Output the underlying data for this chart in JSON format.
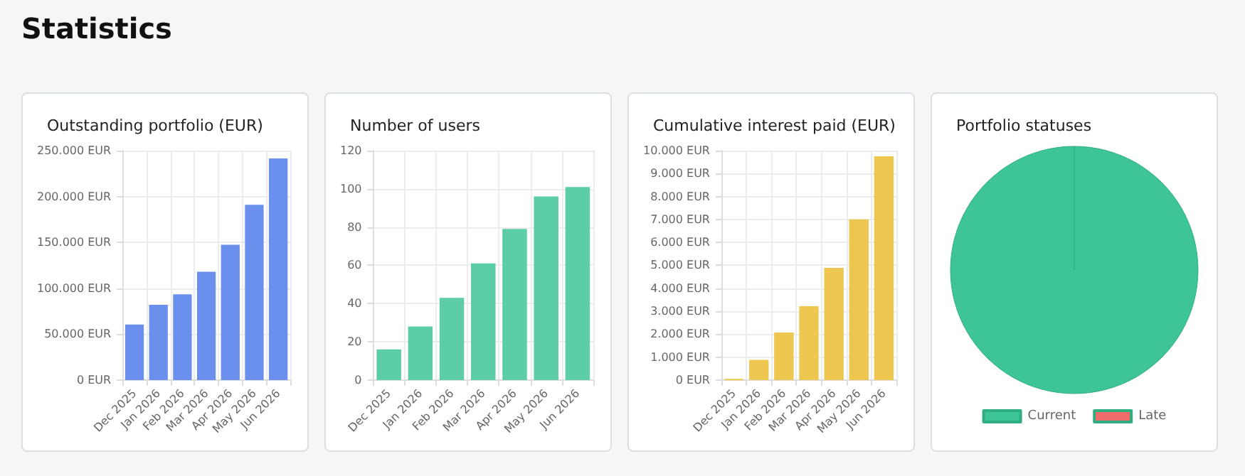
{
  "chart_data": [
    {
      "type": "other",
      "title": "Statistics"
    },
    {
      "type": "bar",
      "title": "Outstanding portfolio (EUR)",
      "categories": [
        "Dec 2025",
        "Jan 2026",
        "Feb 2026",
        "Mar 2026",
        "Apr 2026",
        "May 2026",
        "Jun 2026"
      ],
      "values": [
        60500,
        82000,
        93500,
        118000,
        147500,
        191000,
        241500
      ],
      "color": "#6a8fec",
      "ylim": [
        0,
        250000
      ],
      "yticks": [
        {
          "value": 0,
          "label": "0 EUR"
        },
        {
          "value": 50000,
          "label": "50.000 EUR"
        },
        {
          "value": 100000,
          "label": "100.000 EUR"
        },
        {
          "value": 150000,
          "label": "150.000 EUR"
        },
        {
          "value": 200000,
          "label": "200.000 EUR"
        },
        {
          "value": 250000,
          "label": "250.000 EUR"
        }
      ],
      "grid": true,
      "legend": false
    },
    {
      "type": "bar",
      "title": "Number of users",
      "categories": [
        "Dec 2025",
        "Jan 2026",
        "Feb 2026",
        "Mar 2026",
        "Apr 2026",
        "May 2026",
        "Jun 2026"
      ],
      "values": [
        16,
        28,
        43,
        61,
        79,
        96,
        101
      ],
      "color": "#5ccda4",
      "ylim": [
        0,
        120
      ],
      "yticks": [
        0,
        20,
        40,
        60,
        80,
        100,
        120
      ],
      "grid": true,
      "legend": false
    },
    {
      "type": "bar",
      "title": "Cumulative interest paid (EUR)",
      "categories": [
        "Dec 2025",
        "Jan 2026",
        "Feb 2026",
        "Mar 2026",
        "Apr 2026",
        "May 2026",
        "Jun 2026"
      ],
      "values": [
        40,
        880,
        2070,
        3220,
        4890,
        7000,
        9750
      ],
      "color": "#eec750",
      "ylim": [
        0,
        10000
      ],
      "yticks": [
        {
          "value": 0,
          "label": "0 EUR"
        },
        {
          "value": 1000,
          "label": "1.000 EUR"
        },
        {
          "value": 2000,
          "label": "2.000 EUR"
        },
        {
          "value": 3000,
          "label": "3.000 EUR"
        },
        {
          "value": 4000,
          "label": "4.000 EUR"
        },
        {
          "value": 5000,
          "label": "5.000 EUR"
        },
        {
          "value": 6000,
          "label": "6.000 EUR"
        },
        {
          "value": 7000,
          "label": "7.000 EUR"
        },
        {
          "value": 8000,
          "label": "8.000 EUR"
        },
        {
          "value": 9000,
          "label": "9.000 EUR"
        },
        {
          "value": 10000,
          "label": "10.000 EUR"
        }
      ],
      "grid": true,
      "legend": false
    },
    {
      "type": "pie",
      "title": "Portfolio statuses",
      "categories": [
        "Current",
        "Late"
      ],
      "values": [
        100,
        0
      ],
      "colors": [
        "#3ec595",
        "#f06b6b"
      ],
      "legend": "bottom"
    }
  ]
}
